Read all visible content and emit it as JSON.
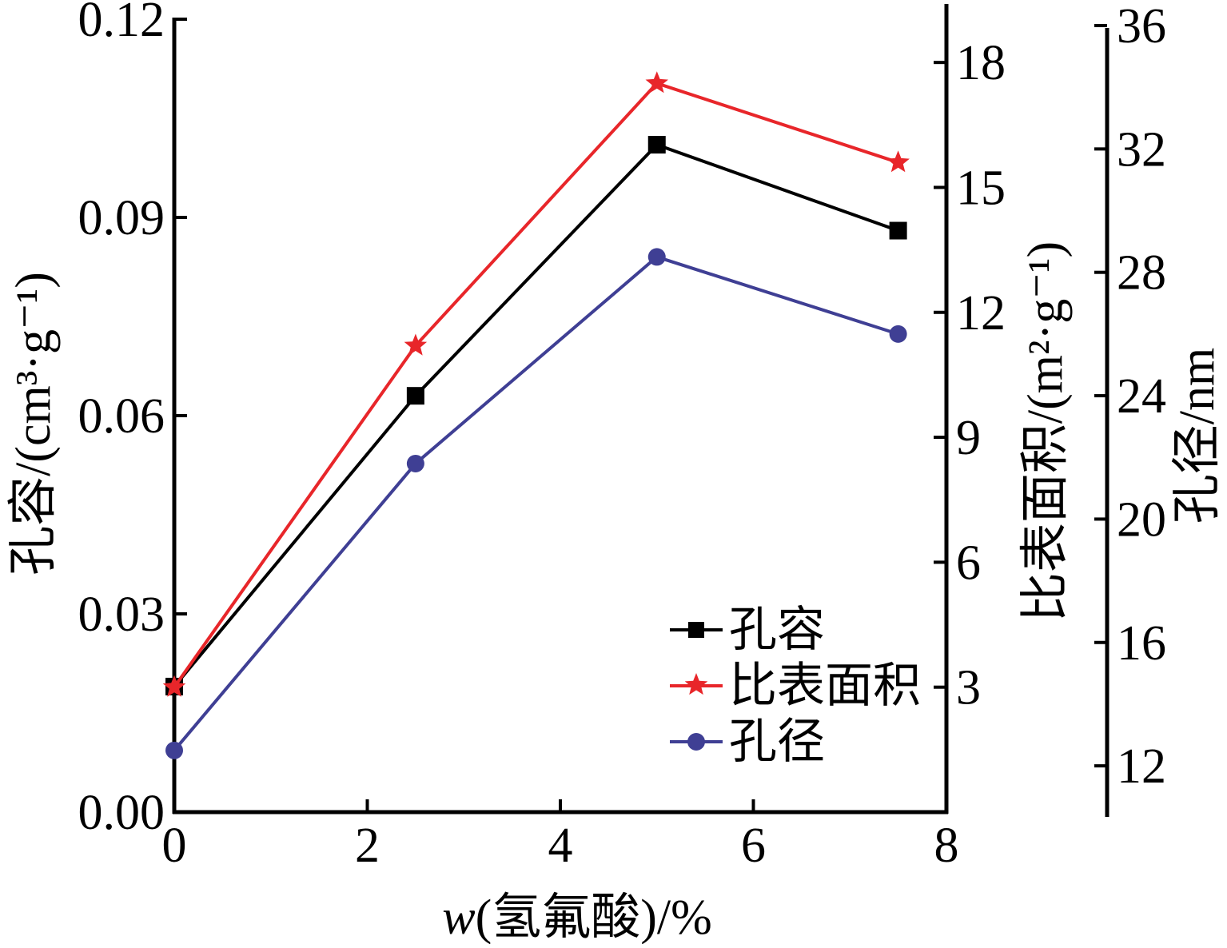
{
  "chart_data": {
    "type": "line",
    "xlabel_italic": "w",
    "xlabel_rest": "(氢氟酸)/%",
    "x_ticks": [
      "0",
      "2",
      "4",
      "6",
      "8"
    ],
    "xlim": [
      0,
      8
    ],
    "x": [
      0,
      2.5,
      5,
      7.5
    ],
    "axes": {
      "y1": {
        "label": "孔容/(cm³·g⁻¹)",
        "ticks": [
          "0.00",
          "0.03",
          "0.06",
          "0.09",
          "0.12"
        ],
        "ylim": [
          0,
          0.12
        ]
      },
      "y2": {
        "label": "比表面积/(m²·g⁻¹)",
        "ticks": [
          "3",
          "6",
          "9",
          "12",
          "15",
          "18"
        ],
        "ylim": [
          0,
          19.5
        ]
      },
      "y3": {
        "label": "孔径/nm",
        "ticks": [
          "12",
          "16",
          "20",
          "24",
          "28",
          "32",
          "36"
        ],
        "ylim": [
          10.5,
          36
        ]
      }
    },
    "series": [
      {
        "name": "孔容",
        "axis": "y1",
        "marker": "square",
        "color": "#000000",
        "values": [
          0.019,
          0.063,
          0.101,
          0.088
        ]
      },
      {
        "name": "比表面积",
        "axis": "y2",
        "marker": "star",
        "color": "#e8262a",
        "values": [
          3.0,
          11.2,
          17.5,
          15.6
        ]
      },
      {
        "name": "孔径",
        "axis": "y3",
        "marker": "circle",
        "color": "#3f3f94",
        "values": [
          12.5,
          21.8,
          28.5,
          26.0
        ]
      }
    ],
    "legend_position": "lower-right",
    "grid": false
  }
}
